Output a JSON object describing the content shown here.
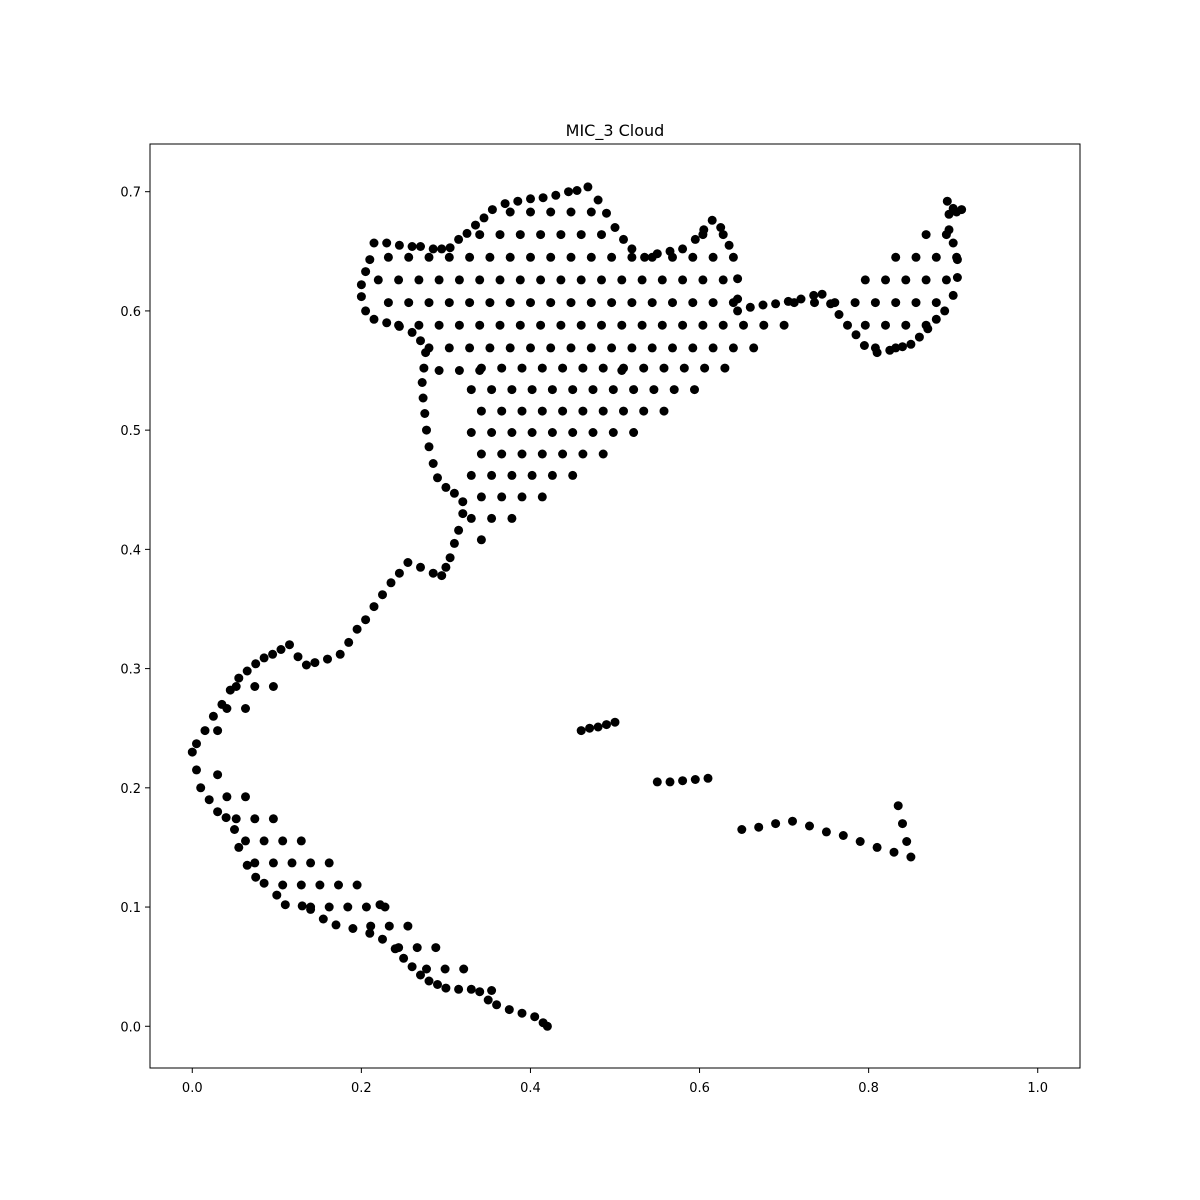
{
  "chart_data": {
    "type": "scatter",
    "title": "MIC_3 Cloud",
    "xlabel": "",
    "ylabel": "",
    "xlim": [
      -0.05,
      1.05
    ],
    "ylim": [
      -0.035,
      0.74
    ],
    "x_ticks": [
      0.0,
      0.2,
      0.4,
      0.6,
      0.8,
      1.0
    ],
    "x_tick_labels": [
      "0.0",
      "0.2",
      "0.4",
      "0.6",
      "0.8",
      "1.0"
    ],
    "y_ticks": [
      0.0,
      0.1,
      0.2,
      0.3,
      0.4,
      0.5,
      0.6,
      0.7
    ],
    "y_tick_labels": [
      "0.0",
      "0.1",
      "0.2",
      "0.3",
      "0.4",
      "0.5",
      "0.6",
      "0.7"
    ],
    "grid": false,
    "marker_color": "#000000",
    "series": [
      {
        "points": [
          [
            0.0,
            0.23
          ],
          [
            0.005,
            0.215
          ],
          [
            0.01,
            0.2
          ],
          [
            0.02,
            0.19
          ],
          [
            0.03,
            0.18
          ],
          [
            0.04,
            0.175
          ],
          [
            0.05,
            0.165
          ],
          [
            0.055,
            0.15
          ],
          [
            0.065,
            0.135
          ],
          [
            0.075,
            0.125
          ],
          [
            0.085,
            0.12
          ],
          [
            0.1,
            0.11
          ],
          [
            0.11,
            0.102
          ],
          [
            0.13,
            0.101
          ],
          [
            0.14,
            0.098
          ],
          [
            0.155,
            0.09
          ],
          [
            0.17,
            0.085
          ],
          [
            0.19,
            0.082
          ],
          [
            0.21,
            0.078
          ],
          [
            0.225,
            0.073
          ],
          [
            0.24,
            0.065
          ],
          [
            0.25,
            0.057
          ],
          [
            0.26,
            0.05
          ],
          [
            0.27,
            0.043
          ],
          [
            0.28,
            0.038
          ],
          [
            0.29,
            0.035
          ],
          [
            0.3,
            0.032
          ],
          [
            0.315,
            0.031
          ],
          [
            0.33,
            0.031
          ],
          [
            0.34,
            0.029
          ],
          [
            0.35,
            0.022
          ],
          [
            0.36,
            0.018
          ],
          [
            0.375,
            0.014
          ],
          [
            0.39,
            0.011
          ],
          [
            0.405,
            0.008
          ],
          [
            0.415,
            0.003
          ],
          [
            0.42,
            0.0
          ],
          [
            0.005,
            0.237
          ],
          [
            0.015,
            0.248
          ],
          [
            0.025,
            0.26
          ],
          [
            0.035,
            0.27
          ],
          [
            0.045,
            0.282
          ],
          [
            0.055,
            0.292
          ],
          [
            0.065,
            0.298
          ],
          [
            0.075,
            0.304
          ],
          [
            0.085,
            0.309
          ],
          [
            0.095,
            0.312
          ],
          [
            0.105,
            0.316
          ],
          [
            0.115,
            0.32
          ],
          [
            0.125,
            0.31
          ],
          [
            0.135,
            0.303
          ],
          [
            0.145,
            0.305
          ],
          [
            0.16,
            0.308
          ],
          [
            0.175,
            0.312
          ],
          [
            0.185,
            0.322
          ],
          [
            0.195,
            0.333
          ],
          [
            0.205,
            0.341
          ],
          [
            0.215,
            0.352
          ],
          [
            0.225,
            0.362
          ],
          [
            0.235,
            0.372
          ],
          [
            0.245,
            0.38
          ],
          [
            0.255,
            0.389
          ],
          [
            0.27,
            0.385
          ],
          [
            0.285,
            0.38
          ],
          [
            0.295,
            0.378
          ],
          [
            0.3,
            0.385
          ],
          [
            0.305,
            0.393
          ],
          [
            0.31,
            0.405
          ],
          [
            0.315,
            0.416
          ],
          [
            0.32,
            0.43
          ],
          [
            0.32,
            0.44
          ],
          [
            0.31,
            0.447
          ],
          [
            0.3,
            0.452
          ],
          [
            0.29,
            0.46
          ],
          [
            0.285,
            0.472
          ],
          [
            0.28,
            0.486
          ],
          [
            0.277,
            0.5
          ],
          [
            0.275,
            0.514
          ],
          [
            0.273,
            0.527
          ],
          [
            0.272,
            0.54
          ],
          [
            0.274,
            0.552
          ],
          [
            0.276,
            0.565
          ],
          [
            0.27,
            0.575
          ],
          [
            0.26,
            0.582
          ],
          [
            0.245,
            0.587
          ],
          [
            0.23,
            0.59
          ],
          [
            0.215,
            0.593
          ],
          [
            0.205,
            0.6
          ],
          [
            0.2,
            0.612
          ],
          [
            0.2,
            0.622
          ],
          [
            0.205,
            0.633
          ],
          [
            0.21,
            0.643
          ],
          [
            0.215,
            0.657
          ],
          [
            0.23,
            0.657
          ],
          [
            0.245,
            0.655
          ],
          [
            0.26,
            0.654
          ],
          [
            0.27,
            0.654
          ],
          [
            0.285,
            0.652
          ],
          [
            0.295,
            0.652
          ],
          [
            0.305,
            0.653
          ],
          [
            0.315,
            0.66
          ],
          [
            0.325,
            0.665
          ],
          [
            0.335,
            0.672
          ],
          [
            0.345,
            0.678
          ],
          [
            0.355,
            0.685
          ],
          [
            0.37,
            0.69
          ],
          [
            0.385,
            0.692
          ],
          [
            0.4,
            0.694
          ],
          [
            0.415,
            0.695
          ],
          [
            0.43,
            0.697
          ],
          [
            0.445,
            0.7
          ],
          [
            0.455,
            0.701
          ],
          [
            0.468,
            0.704
          ],
          [
            0.48,
            0.693
          ],
          [
            0.49,
            0.682
          ],
          [
            0.5,
            0.67
          ],
          [
            0.51,
            0.66
          ],
          [
            0.52,
            0.652
          ],
          [
            0.535,
            0.645
          ],
          [
            0.55,
            0.648
          ],
          [
            0.565,
            0.65
          ],
          [
            0.58,
            0.652
          ],
          [
            0.595,
            0.66
          ],
          [
            0.605,
            0.668
          ],
          [
            0.615,
            0.676
          ],
          [
            0.625,
            0.67
          ],
          [
            0.635,
            0.655
          ],
          [
            0.64,
            0.645
          ],
          [
            0.645,
            0.627
          ],
          [
            0.645,
            0.61
          ],
          [
            0.645,
            0.6
          ],
          [
            0.66,
            0.603
          ],
          [
            0.675,
            0.605
          ],
          [
            0.69,
            0.606
          ],
          [
            0.705,
            0.608
          ],
          [
            0.72,
            0.61
          ],
          [
            0.735,
            0.613
          ],
          [
            0.745,
            0.614
          ],
          [
            0.755,
            0.606
          ],
          [
            0.765,
            0.597
          ],
          [
            0.775,
            0.588
          ],
          [
            0.785,
            0.58
          ],
          [
            0.795,
            0.571
          ],
          [
            0.81,
            0.565
          ],
          [
            0.825,
            0.567
          ],
          [
            0.84,
            0.57
          ],
          [
            0.85,
            0.572
          ],
          [
            0.86,
            0.578
          ],
          [
            0.87,
            0.585
          ],
          [
            0.88,
            0.593
          ],
          [
            0.89,
            0.6
          ],
          [
            0.9,
            0.613
          ],
          [
            0.905,
            0.628
          ],
          [
            0.905,
            0.643
          ],
          [
            0.9,
            0.657
          ],
          [
            0.895,
            0.668
          ],
          [
            0.895,
            0.681
          ],
          [
            0.893,
            0.692
          ],
          [
            0.9,
            0.686
          ],
          [
            0.91,
            0.685
          ],
          [
            0.5,
            0.255
          ],
          [
            0.49,
            0.253
          ],
          [
            0.48,
            0.251
          ],
          [
            0.47,
            0.25
          ],
          [
            0.46,
            0.248
          ],
          [
            0.55,
            0.205
          ],
          [
            0.565,
            0.205
          ],
          [
            0.58,
            0.206
          ],
          [
            0.595,
            0.207
          ],
          [
            0.61,
            0.208
          ],
          [
            0.65,
            0.165
          ],
          [
            0.67,
            0.167
          ],
          [
            0.69,
            0.17
          ],
          [
            0.71,
            0.172
          ],
          [
            0.73,
            0.168
          ],
          [
            0.75,
            0.163
          ],
          [
            0.77,
            0.16
          ],
          [
            0.79,
            0.155
          ],
          [
            0.81,
            0.15
          ],
          [
            0.83,
            0.146
          ],
          [
            0.85,
            0.142
          ],
          [
            0.845,
            0.155
          ],
          [
            0.84,
            0.17
          ],
          [
            0.835,
            0.185
          ]
        ]
      }
    ],
    "grid_regions": [
      {
        "x0": 0.03,
        "x1": 0.25,
        "y0": 0.1,
        "y1": 0.29,
        "dx": 0.022,
        "dy": 0.0185,
        "inset": 0.01
      },
      {
        "x0": 0.2,
        "x1": 0.52,
        "y0": 0.03,
        "y1": 0.28,
        "dx": 0.022,
        "dy": 0.018,
        "inset": 0.01
      },
      {
        "x0": 0.33,
        "x1": 0.98,
        "y0": 0.21,
        "y1": 0.57,
        "dx": 0.024,
        "dy": 0.018,
        "inset": 0.0
      },
      {
        "x0": 0.22,
        "x1": 0.96,
        "y0": 0.55,
        "y1": 0.69,
        "dx": 0.024,
        "dy": 0.019,
        "inset": 0.0
      }
    ]
  }
}
